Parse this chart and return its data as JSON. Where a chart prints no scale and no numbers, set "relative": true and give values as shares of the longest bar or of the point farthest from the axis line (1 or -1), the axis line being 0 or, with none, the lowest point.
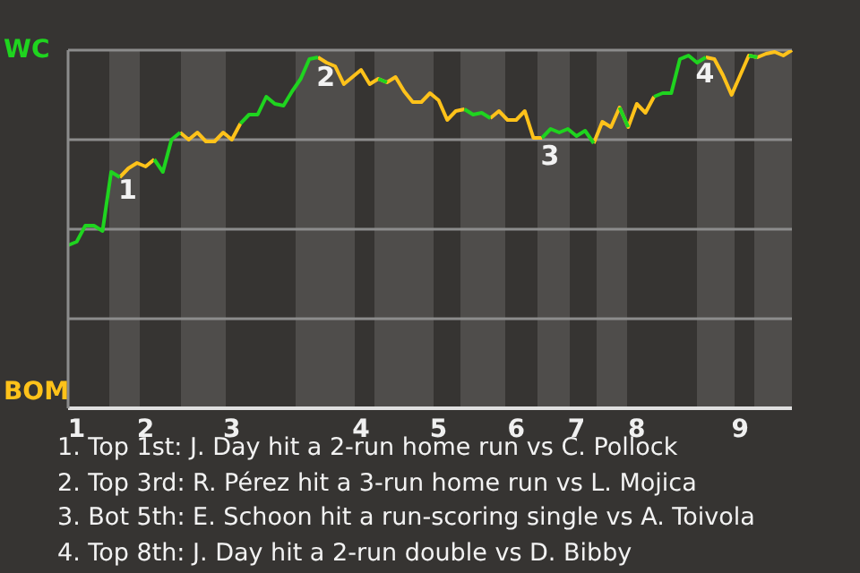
{
  "chart_data": {
    "type": "line",
    "categories": [
      null,
      "1",
      null,
      null,
      null,
      null,
      null,
      null,
      null,
      "2",
      null,
      null,
      null,
      null,
      null,
      null,
      null,
      null,
      null,
      "3",
      null,
      null,
      null,
      null,
      null,
      null,
      null,
      null,
      null,
      null,
      null,
      null,
      null,
      null,
      "4",
      null,
      null,
      null,
      null,
      null,
      null,
      null,
      null,
      "5",
      null,
      null,
      null,
      null,
      null,
      null,
      null,
      null,
      "6",
      null,
      null,
      null,
      null,
      null,
      null,
      "7",
      null,
      null,
      null,
      null,
      null,
      null,
      "8",
      null,
      null,
      null,
      null,
      null,
      null,
      null,
      null,
      null,
      null,
      null,
      "9",
      null,
      null,
      null,
      null,
      null,
      null
    ],
    "series": [
      {
        "color": "#1fd41f",
        "values": [
          0.455,
          0.465,
          0.51,
          0.51,
          0.495,
          0.66,
          0.645,
          null,
          null,
          null,
          0.695,
          0.66,
          0.75,
          0.77,
          null,
          null,
          null,
          null,
          null,
          null,
          0.795,
          0.82,
          0.82,
          0.87,
          0.85,
          0.845,
          0.885,
          0.92,
          0.975,
          0.98,
          null,
          null,
          null,
          null,
          null,
          null,
          0.92,
          0.91,
          null,
          null,
          null,
          null,
          null,
          null,
          null,
          null,
          0.835,
          0.82,
          0.825,
          0.81,
          null,
          null,
          null,
          null,
          null,
          0.755,
          0.78,
          0.77,
          0.78,
          0.76,
          0.775,
          0.74,
          null,
          null,
          0.84,
          0.785,
          null,
          null,
          0.87,
          0.88,
          0.88,
          0.975,
          0.985,
          0.965,
          0.98,
          null,
          null,
          null,
          null,
          0.985,
          0.98,
          null,
          null,
          null,
          null
        ]
      },
      {
        "color": "#ffc21a",
        "values": [
          null,
          null,
          null,
          null,
          null,
          null,
          0.645,
          0.67,
          0.685,
          0.675,
          0.695,
          null,
          null,
          0.77,
          0.75,
          0.77,
          0.745,
          0.745,
          0.77,
          0.75,
          0.795,
          null,
          null,
          null,
          null,
          null,
          null,
          null,
          null,
          0.98,
          0.965,
          0.955,
          0.905,
          0.925,
          0.945,
          0.905,
          0.92,
          0.91,
          0.925,
          0.885,
          0.855,
          0.855,
          0.88,
          0.86,
          0.805,
          0.83,
          0.835,
          null,
          null,
          0.81,
          0.83,
          0.805,
          0.805,
          0.83,
          0.755,
          0.755,
          null,
          null,
          null,
          null,
          null,
          0.74,
          0.8,
          0.785,
          0.84,
          0.785,
          0.85,
          0.825,
          0.87,
          null,
          null,
          null,
          null,
          null,
          0.98,
          0.975,
          0.93,
          0.875,
          0.93,
          0.985,
          0.98,
          0.99,
          0.995,
          0.985,
          1.0
        ]
      }
    ],
    "relative": true,
    "grid": "y",
    "marker": "none",
    "line_style": "solid",
    "annotations": [
      "WC",
      "BOM",
      {
        "text": "1",
        "y": 0.66
      },
      {
        "text": "2",
        "y": 0.975
      },
      {
        "text": "3",
        "y": 0.755
      },
      {
        "text": "4",
        "y": 0.985
      },
      "1. Top 1st: J. Day hit a 2-run home run vs C. Pollock",
      "2. Top 3rd: R. Pérez hit a 3-run home run vs L. Mojica",
      "3. Bot 5th: E. Schoon hit a run-scoring single vs A. Toivola",
      "4. Top 8th: J. Day hit a 2-run double vs D. Bibby"
    ]
  }
}
